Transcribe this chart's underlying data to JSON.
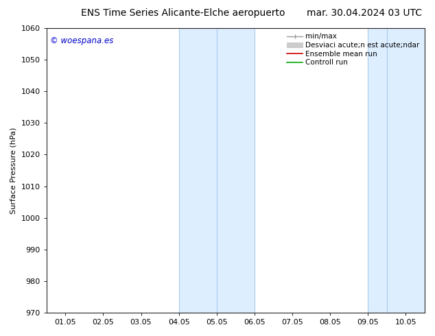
{
  "title_left": "ENS Time Series Alicante-Elche aeropuerto",
  "title_right": "mar. 30.04.2024 03 UTC",
  "ylabel": "Surface Pressure (hPa)",
  "ylim": [
    970,
    1060
  ],
  "yticks": [
    970,
    980,
    990,
    1000,
    1010,
    1020,
    1030,
    1040,
    1050,
    1060
  ],
  "xtick_labels": [
    "01.05",
    "02.05",
    "03.05",
    "04.05",
    "05.05",
    "06.05",
    "07.05",
    "08.05",
    "09.05",
    "10.05"
  ],
  "shaded_bands": [
    {
      "xstart": 3.0,
      "xend": 4.0,
      "color": "#ddeeff",
      "edge": "#aaccee"
    },
    {
      "xstart": 4.0,
      "xend": 5.0,
      "color": "#ddeeff",
      "edge": "#aaccee"
    },
    {
      "xstart": 8.0,
      "xend": 8.5,
      "color": "#ddeeff",
      "edge": "#aaccee"
    },
    {
      "xstart": 8.5,
      "xend": 9.5,
      "color": "#ddeeff",
      "edge": "#aaccee"
    }
  ],
  "watermark": "© woespana.es",
  "watermark_color": "#0000cc",
  "legend_labels": [
    "min/max",
    "Desviaci acute;n est acute;ndar",
    "Ensemble mean run",
    "Controll run"
  ],
  "legend_colors": [
    "#999999",
    "#cccccc",
    "#cc0000",
    "#00aa00"
  ],
  "bg_color": "#ffffff",
  "title_fontsize": 10,
  "ylabel_fontsize": 8,
  "tick_fontsize": 8,
  "legend_fontsize": 7.5
}
